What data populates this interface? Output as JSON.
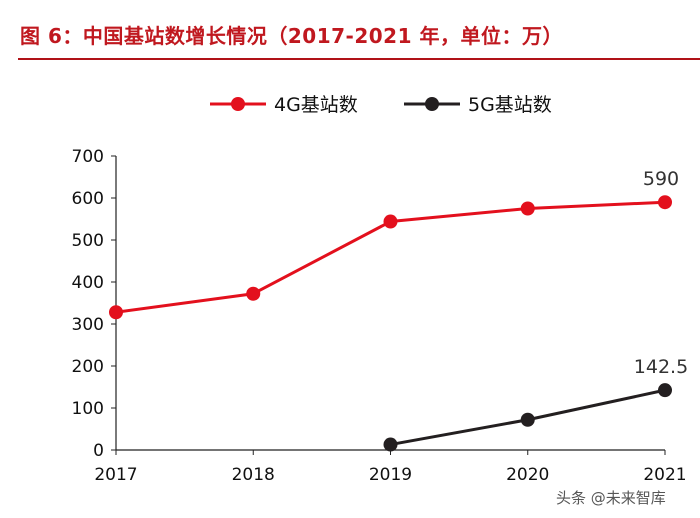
{
  "title": "图 6：中国基站数增长情况（2017-2021 年，单位：万）",
  "watermark": "头条 @未来智库",
  "chart_data": {
    "type": "line",
    "title": "图 6：中国基站数增长情况（2017-2021 年，单位：万）",
    "xlabel": "",
    "ylabel": "",
    "categories": [
      "2017",
      "2018",
      "2019",
      "2020",
      "2021"
    ],
    "ylim": [
      0,
      700
    ],
    "yticks": [
      0,
      100,
      200,
      300,
      400,
      500,
      600,
      700
    ],
    "legend_position": "top",
    "grid": false,
    "series": [
      {
        "name": "4G基站数",
        "color": "#e3101d",
        "values": [
          328,
          372,
          544,
          575,
          590
        ]
      },
      {
        "name": "5G基站数",
        "color": "#231f20",
        "values": [
          null,
          null,
          13,
          72,
          142.5
        ]
      }
    ],
    "annotations": [
      {
        "series": "4G基站数",
        "category": "2021",
        "text": "590"
      },
      {
        "series": "5G基站数",
        "category": "2021",
        "text": "142.5"
      }
    ]
  }
}
